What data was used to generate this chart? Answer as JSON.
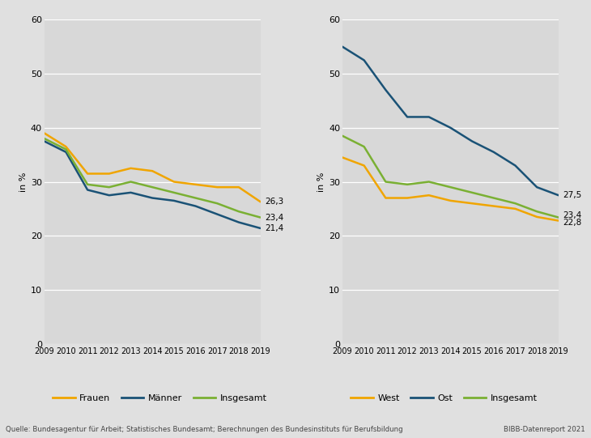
{
  "years": [
    2009,
    2010,
    2011,
    2012,
    2013,
    2014,
    2015,
    2016,
    2017,
    2018,
    2019
  ],
  "left_frauen": [
    39.0,
    36.5,
    31.5,
    31.5,
    32.5,
    32.0,
    30.0,
    29.5,
    29.0,
    29.0,
    26.3
  ],
  "left_maenner": [
    37.5,
    35.5,
    28.5,
    27.5,
    28.0,
    27.0,
    26.5,
    25.5,
    24.0,
    22.5,
    21.4
  ],
  "left_insgesamt": [
    38.0,
    36.0,
    29.5,
    29.0,
    30.0,
    29.0,
    28.0,
    27.0,
    26.0,
    24.5,
    23.4
  ],
  "right_west": [
    34.5,
    33.0,
    27.0,
    27.0,
    27.5,
    26.5,
    26.0,
    25.5,
    25.0,
    23.5,
    22.8
  ],
  "right_ost": [
    55.0,
    52.5,
    47.0,
    42.0,
    42.0,
    40.0,
    37.5,
    35.5,
    33.0,
    29.0,
    27.5
  ],
  "right_insgesamt": [
    38.5,
    36.5,
    30.0,
    29.5,
    30.0,
    29.0,
    28.0,
    27.0,
    26.0,
    24.5,
    23.4
  ],
  "color_orange": "#f0a500",
  "color_blue": "#1a5276",
  "color_green": "#7ab033",
  "bg_color": "#d8d8d8",
  "fig_bg": "#e0e0e0",
  "ylabel": "in %",
  "ylim": [
    0,
    60
  ],
  "yticks": [
    0,
    10,
    20,
    30,
    40,
    50,
    60
  ],
  "source_text": "Quelle: Bundesagentur für Arbeit; Statistisches Bundesamt; Berechnungen des Bundesinstituts für Berufsbildung",
  "bibb_text": "BIBB-Datenreport 2021"
}
